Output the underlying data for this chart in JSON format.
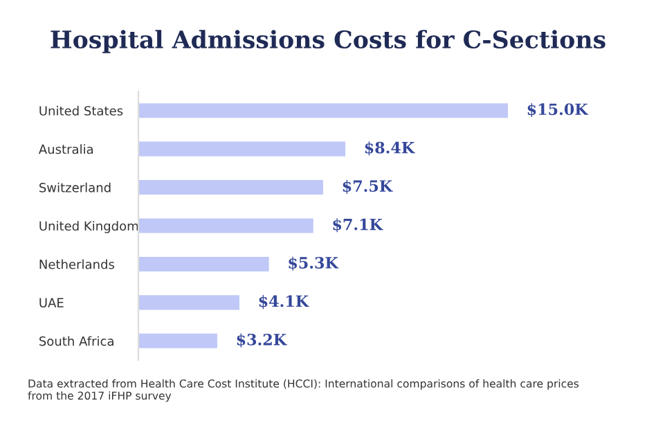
{
  "chart_data": {
    "type": "bar",
    "orientation": "horizontal",
    "title": "Hospital Admissions Costs for C-Sections",
    "categories": [
      "United States",
      "Australia",
      "Switzerland",
      "United Kingdom",
      "Netherlands",
      "UAE",
      "South Africa"
    ],
    "values": [
      15.0,
      8.4,
      7.5,
      7.1,
      5.3,
      4.1,
      3.2
    ],
    "value_labels": [
      "$15.0K",
      "$8.4K",
      "$7.5K",
      "$7.1K",
      "$5.3K",
      "$4.1K",
      "$3.2K"
    ],
    "color": "#bfc8f7",
    "annotations": [
      "Data extracted from Health Care Cost Institute (HCCI): International comparisons of health care prices from the 2017 iFHP survey"
    ],
    "grid": false,
    "legend": false
  }
}
